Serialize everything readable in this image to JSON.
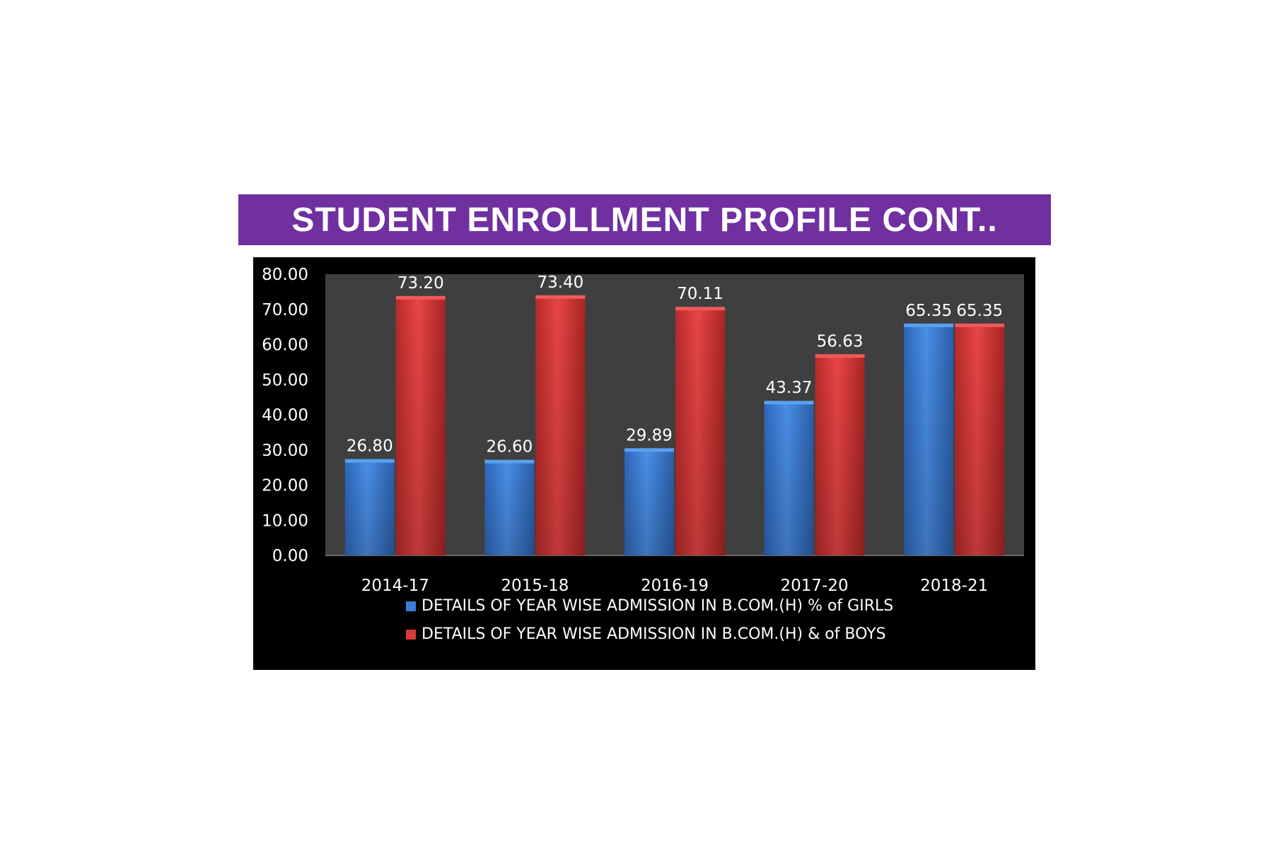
{
  "slide": {
    "title": "STUDENT ENROLLMENT PROFILE  CONT.."
  },
  "chart_data": {
    "type": "bar",
    "title": "",
    "xlabel": "",
    "ylabel": "",
    "ylim": [
      0,
      80
    ],
    "yticks": [
      "0.00",
      "10.00",
      "20.00",
      "30.00",
      "40.00",
      "50.00",
      "60.00",
      "70.00",
      "80.00"
    ],
    "categories": [
      "2014-17",
      "2015-18",
      "2016-19",
      "2017-20",
      "2018-21"
    ],
    "series": [
      {
        "name": "DETAILS OF YEAR WISE ADMISSION IN B.COM.(H) % of GIRLS",
        "values": [
          26.8,
          26.6,
          29.89,
          43.37,
          65.35
        ],
        "labels": [
          "26.80",
          "26.60",
          "29.89",
          "43.37",
          "65.35"
        ],
        "color": "#3b7dd8"
      },
      {
        "name": "DETAILS OF YEAR WISE ADMISSION IN B.COM.(H) & of BOYS",
        "values": [
          73.2,
          73.4,
          70.11,
          56.63,
          65.35
        ],
        "labels": [
          "73.20",
          "73.40",
          "70.11",
          "56.63",
          "65.35"
        ],
        "color": "#d83b3b"
      }
    ],
    "legend_position": "bottom",
    "plot_background": "#3f3f3f",
    "chart_background": "#000000",
    "grid": false
  }
}
